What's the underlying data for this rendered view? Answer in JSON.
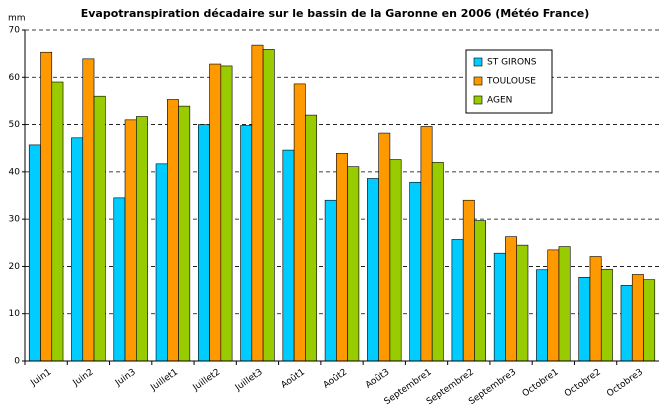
{
  "chart_data": {
    "type": "bar",
    "title": "Evapotranspiration décadaire sur le bassin de la Garonne en 2006 (Météo France)",
    "y_label": "mm",
    "categories": [
      "Juin1",
      "Juin2",
      "Juin3",
      "Juillet1",
      "Juillet2",
      "Juillet3",
      "Août1",
      "Août2",
      "Août3",
      "Septembre1",
      "Septembre2",
      "Septembre3",
      "Octobre1",
      "Octobre2",
      "Octobre3"
    ],
    "series": [
      {
        "name": "ST GIRONS",
        "color": "#00ccff",
        "values": [
          45.7,
          47.2,
          34.5,
          41.7,
          50,
          49.8,
          44.6,
          34,
          38.6,
          37.8,
          25.7,
          22.8,
          19.3,
          17.7,
          16
        ]
      },
      {
        "name": "TOULOUSE",
        "color": "#ff9900",
        "values": [
          65.3,
          63.9,
          51,
          55.3,
          62.8,
          66.8,
          58.6,
          43.9,
          48.2,
          49.6,
          34,
          26.3,
          23.5,
          22.1,
          18.3
        ]
      },
      {
        "name": "AGEN",
        "color": "#99cc00",
        "values": [
          59,
          56,
          51.7,
          53.9,
          62.4,
          65.9,
          52,
          41.1,
          42.6,
          42,
          29.7,
          24.5,
          24.2,
          19.4,
          17.2
        ]
      }
    ],
    "ylim": [
      0,
      70
    ],
    "yticks": [
      0,
      10,
      20,
      30,
      40,
      50,
      60,
      70
    ],
    "grid": true,
    "legend": "upper right"
  }
}
